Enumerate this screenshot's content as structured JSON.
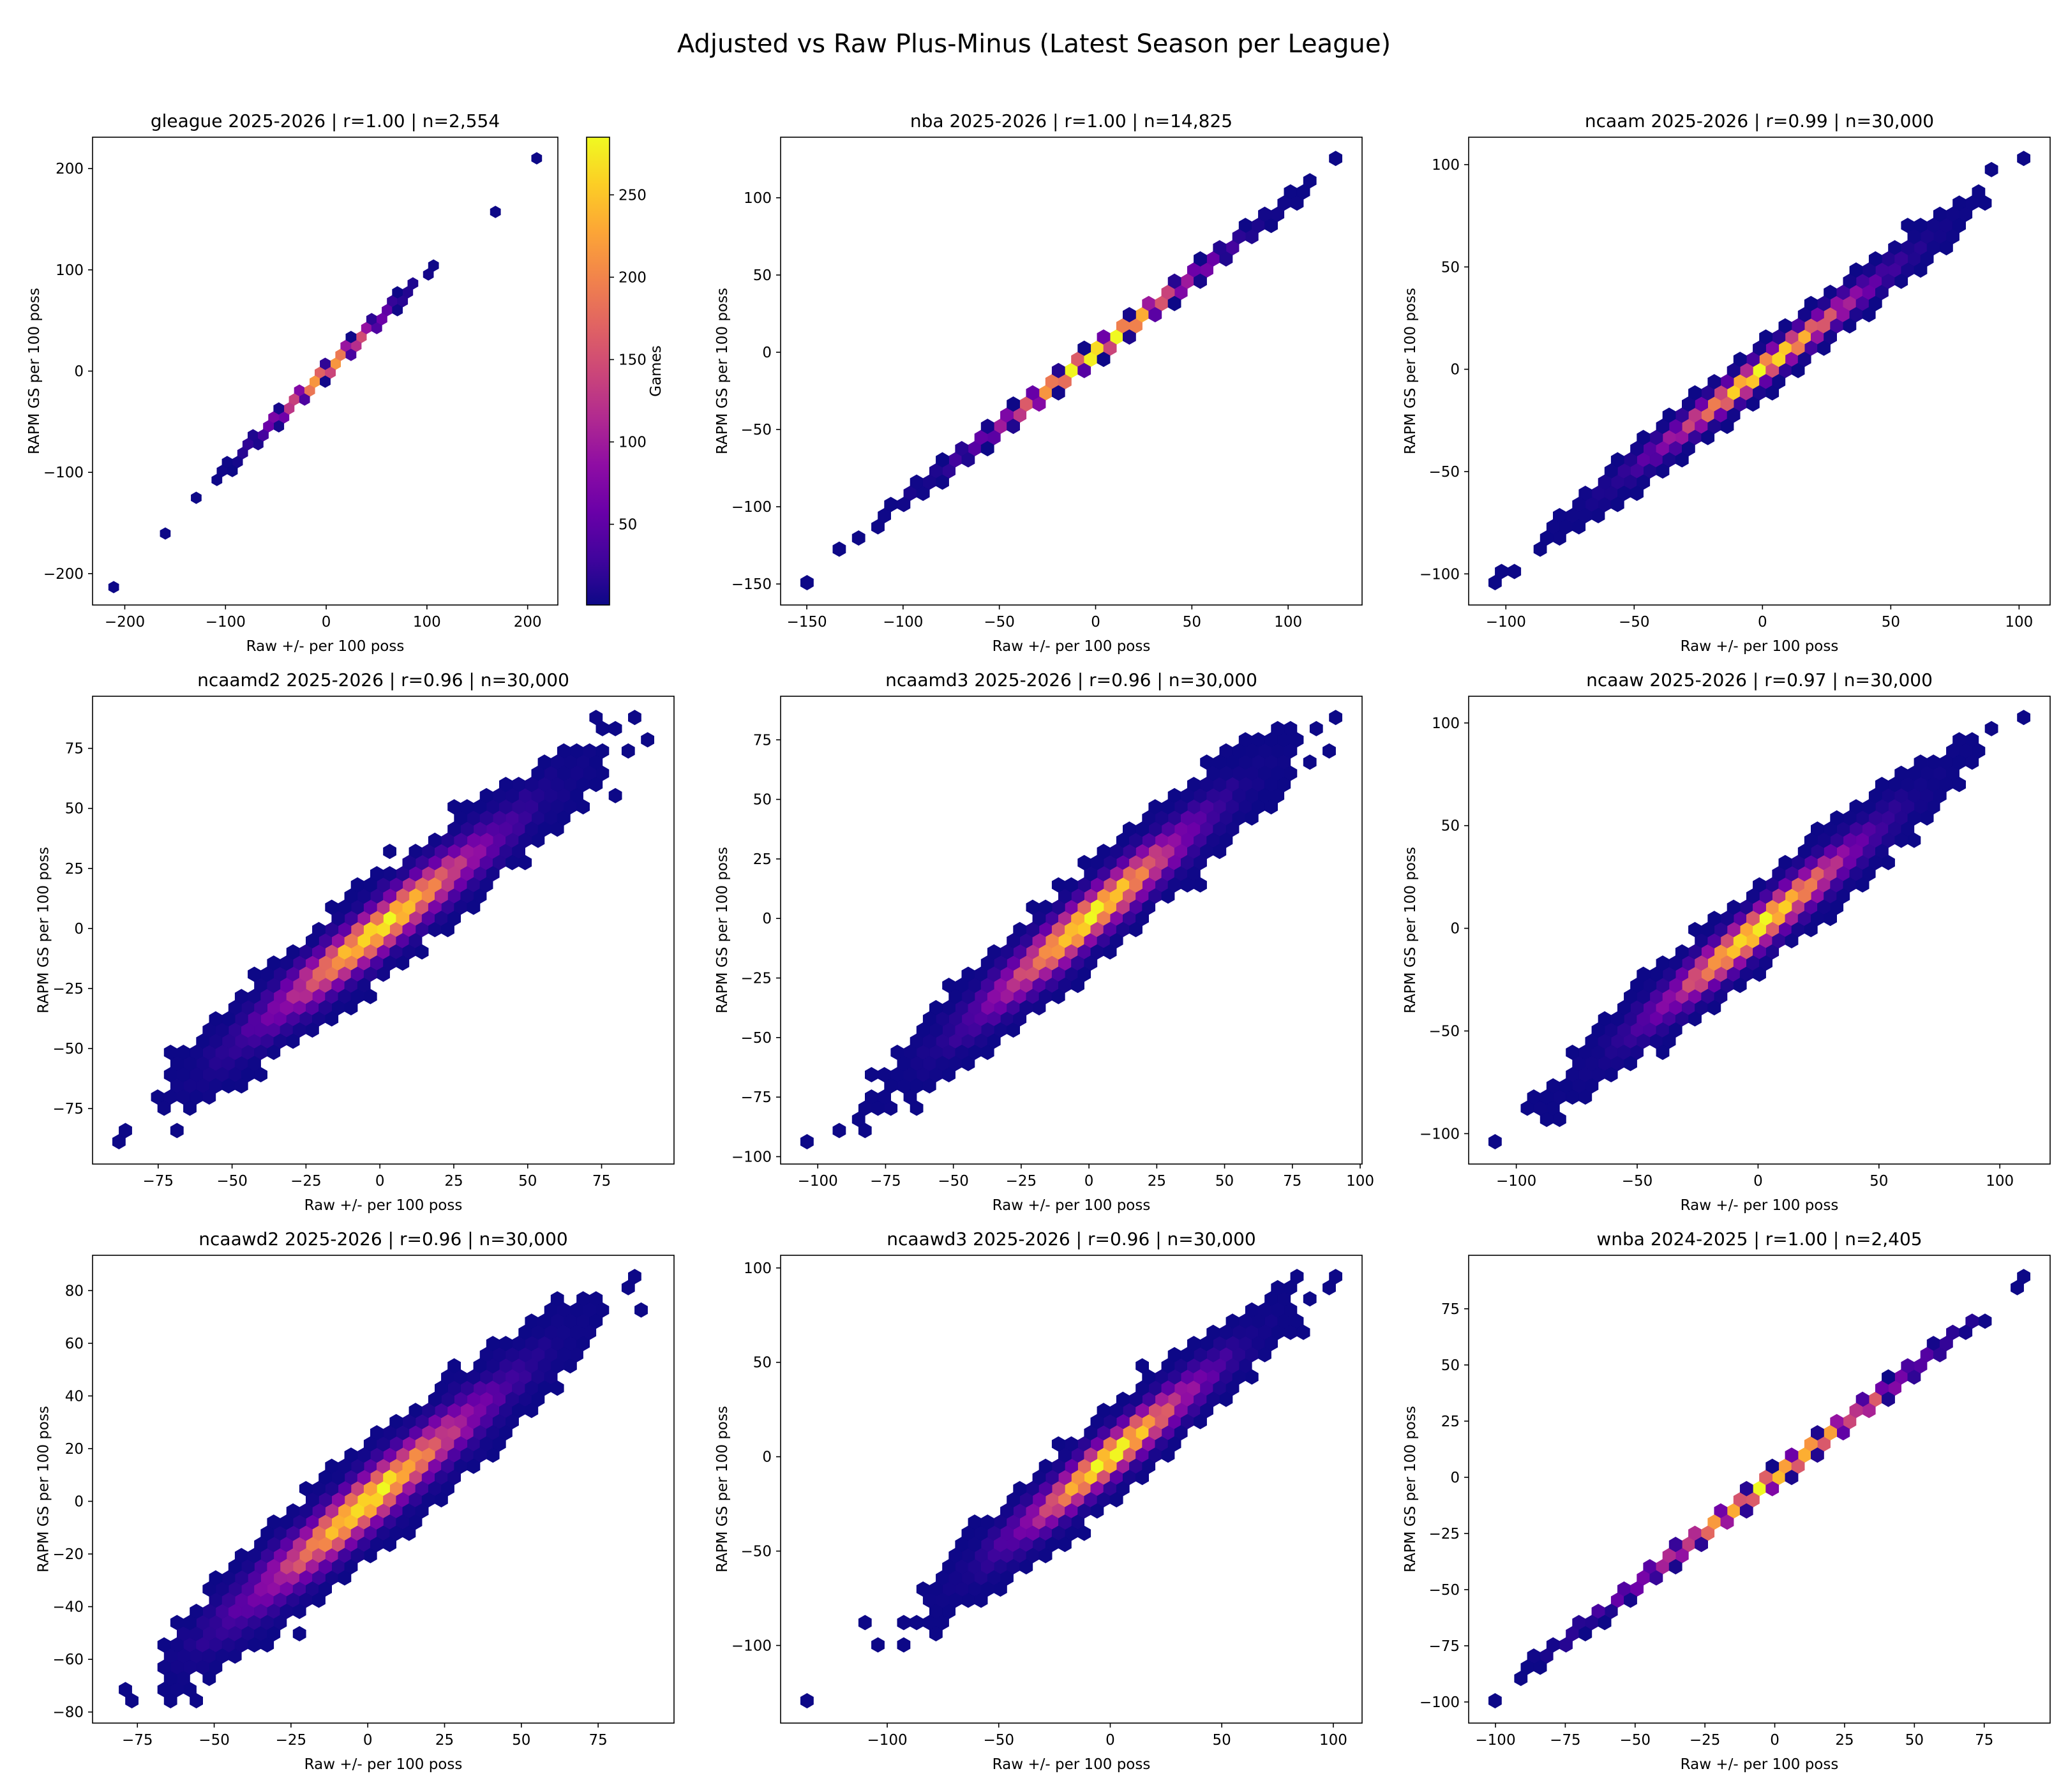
{
  "figure": {
    "title": "Adjusted vs Raw Plus-Minus (Latest Season per League)"
  },
  "chart_data": [
    {
      "type": "hexbin",
      "title": "gleague 2025-2026 | r=1.00 | n=2,554",
      "r": 1.0,
      "n": 2554,
      "xlabel": "Raw +/- per 100 poss",
      "ylabel": "RAPM GS per 100 poss",
      "xlim": [
        -232,
        230
      ],
      "ylim": [
        -231,
        231
      ],
      "xticks": [
        -200,
        -100,
        0,
        100,
        200
      ],
      "yticks": [
        -200,
        -100,
        0,
        100,
        200
      ],
      "isolated_points": [
        [
          -210,
          -210
        ],
        [
          -163,
          -160
        ],
        [
          163,
          160
        ],
        [
          210,
          210
        ],
        [
          -102,
          -100
        ]
      ],
      "colorbar": {
        "label": "Games",
        "ticks": [
          50,
          100,
          150,
          200,
          250
        ],
        "range": [
          1,
          285
        ],
        "colormap": "plasma"
      }
    },
    {
      "type": "hexbin",
      "title": "nba 2025-2026 | r=1.00 | n=14,825",
      "r": 1.0,
      "n": 14825,
      "xlabel": "Raw +/- per 100 poss",
      "ylabel": "RAPM GS per 100 poss",
      "xlim": [
        -163.6,
        138.4
      ],
      "ylim": [
        -163.6,
        139.2
      ],
      "xticks": [
        -150,
        -100,
        -50,
        0,
        50,
        100
      ],
      "yticks": [
        -150,
        -100,
        -50,
        0,
        50,
        100
      ],
      "isolated_points": [
        [
          -150,
          -150
        ],
        [
          -123,
          -123
        ],
        [
          125,
          125
        ],
        [
          112,
          114
        ]
      ]
    },
    {
      "type": "hexbin",
      "title": "ncaam 2025-2026 | r=0.99 | n=30,000",
      "r": 0.99,
      "n": 30000,
      "xlabel": "Raw +/- per 100 poss",
      "ylabel": "RAPM GS per 100 poss",
      "xlim": [
        -114.5,
        112.1
      ],
      "ylim": [
        -115.2,
        113.4
      ],
      "xticks": [
        -100,
        -50,
        0,
        50,
        100
      ],
      "yticks": [
        -100,
        -50,
        0,
        50,
        100
      ],
      "isolated_points": [
        [
          -105,
          -105
        ],
        [
          -100,
          -97
        ],
        [
          -95,
          -97
        ],
        [
          102,
          103
        ],
        [
          88,
          95
        ]
      ]
    },
    {
      "type": "hexbin",
      "title": "ncaamd2 2025-2026 | r=0.96 | n=30,000",
      "r": 0.96,
      "n": 30000,
      "xlabel": "Raw +/- per 100 poss",
      "ylabel": "RAPM GS per 100 poss",
      "xlim": [
        -97.2,
        99.5
      ],
      "ylim": [
        -98.1,
        96.7
      ],
      "xticks": [
        -75,
        -50,
        -25,
        0,
        25,
        50,
        75
      ],
      "yticks": [
        -75,
        -50,
        -25,
        0,
        25,
        50,
        75
      ],
      "isolated_points": [
        [
          -88,
          -89
        ],
        [
          -86,
          -86
        ],
        [
          87,
          88
        ],
        [
          90,
          80
        ],
        [
          81,
          84
        ],
        [
          82,
          73
        ],
        [
          81,
          56
        ],
        [
          -8,
          17
        ]
      ]
    },
    {
      "type": "hexbin",
      "title": "ncaamd3 2025-2026 | r=0.96 | n=30,000",
      "r": 0.96,
      "n": 30000,
      "xlabel": "Raw +/- per 100 poss",
      "ylabel": "RAPM GS per 100 poss",
      "xlim": [
        -113.7,
        100.7
      ],
      "ylim": [
        -103.1,
        93.3
      ],
      "xticks": [
        -100,
        -75,
        -50,
        -25,
        0,
        25,
        50,
        75,
        100
      ],
      "yticks": [
        -100,
        -75,
        -50,
        -25,
        0,
        25,
        50,
        75
      ],
      "isolated_points": [
        [
          -104,
          -94
        ],
        [
          -93,
          -91
        ],
        [
          -91,
          -87
        ],
        [
          -85,
          -84
        ],
        [
          91,
          84
        ],
        [
          84,
          81
        ],
        [
          89,
          73
        ],
        [
          80,
          66
        ]
      ]
    },
    {
      "type": "hexbin",
      "title": "ncaaw 2025-2026 | r=0.97 | n=30,000",
      "r": 0.97,
      "n": 30000,
      "xlabel": "Raw +/- per 100 poss",
      "ylabel": "RAPM GS per 100 poss",
      "xlim": [
        -119.7,
        120.8
      ],
      "ylim": [
        -114.8,
        113.0
      ],
      "xticks": [
        -100,
        -50,
        0,
        50,
        100
      ],
      "yticks": [
        -100,
        -50,
        0,
        50,
        100
      ],
      "isolated_points": [
        [
          -109,
          -105
        ],
        [
          -94,
          -88
        ],
        [
          -94,
          -80
        ],
        [
          -87,
          -84
        ],
        [
          110,
          102
        ],
        [
          98,
          98
        ],
        [
          96,
          94
        ]
      ]
    },
    {
      "type": "hexbin",
      "title": "ncaawd2 2025-2026 | r=0.96 | n=30,000",
      "r": 0.96,
      "n": 30000,
      "xlabel": "Raw +/- per 100 poss",
      "ylabel": "RAPM GS per 100 poss",
      "xlim": [
        -89.6,
        99.7
      ],
      "ylim": [
        -84.2,
        93.4
      ],
      "xticks": [
        -75,
        -50,
        -25,
        0,
        25,
        50,
        75
      ],
      "yticks": [
        -80,
        -60,
        -40,
        -20,
        0,
        20,
        40,
        60,
        80
      ],
      "isolated_points": [
        [
          -80,
          -70
        ],
        [
          -76,
          -76
        ],
        [
          91,
          72
        ],
        [
          87,
          85
        ],
        [
          85,
          82
        ],
        [
          74,
          76
        ]
      ]
    },
    {
      "type": "hexbin",
      "title": "ncaawd3 2025-2026 | r=0.96 | n=30,000",
      "r": 0.96,
      "n": 30000,
      "xlabel": "Raw +/- per 100 poss",
      "ylabel": "RAPM GS per 100 poss",
      "xlim": [
        -147.8,
        112.9
      ],
      "ylim": [
        -141.1,
        106.7
      ],
      "xticks": [
        -100,
        -50,
        0,
        50,
        100
      ],
      "yticks": [
        -100,
        -50,
        0,
        50,
        100
      ],
      "isolated_points": [
        [
          -136,
          -130
        ],
        [
          -110,
          -85
        ],
        [
          -93,
          -85
        ],
        [
          -91,
          -90
        ],
        [
          101,
          95
        ],
        [
          98,
          91
        ],
        [
          88,
          82
        ]
      ]
    },
    {
      "type": "hexbin",
      "title": "wnba 2024-2025 | r=1.00 | n=2,405",
      "r": 1.0,
      "n": 2405,
      "xlabel": "Raw +/- per 100 poss",
      "ylabel": "RAPM GS per 100 poss",
      "xlim": [
        -109.6,
        98.6
      ],
      "ylim": [
        -109.4,
        98.8
      ],
      "xticks": [
        -100,
        -75,
        -50,
        -25,
        0,
        25,
        50,
        75
      ],
      "yticks": [
        -100,
        -75,
        -50,
        -25,
        0,
        25,
        50,
        75
      ],
      "isolated_points": [
        [
          -100,
          -100
        ],
        [
          -92,
          -92
        ],
        [
          -88,
          -85
        ],
        [
          -80,
          -77
        ],
        [
          89,
          89
        ],
        [
          87,
          85
        ]
      ]
    }
  ]
}
